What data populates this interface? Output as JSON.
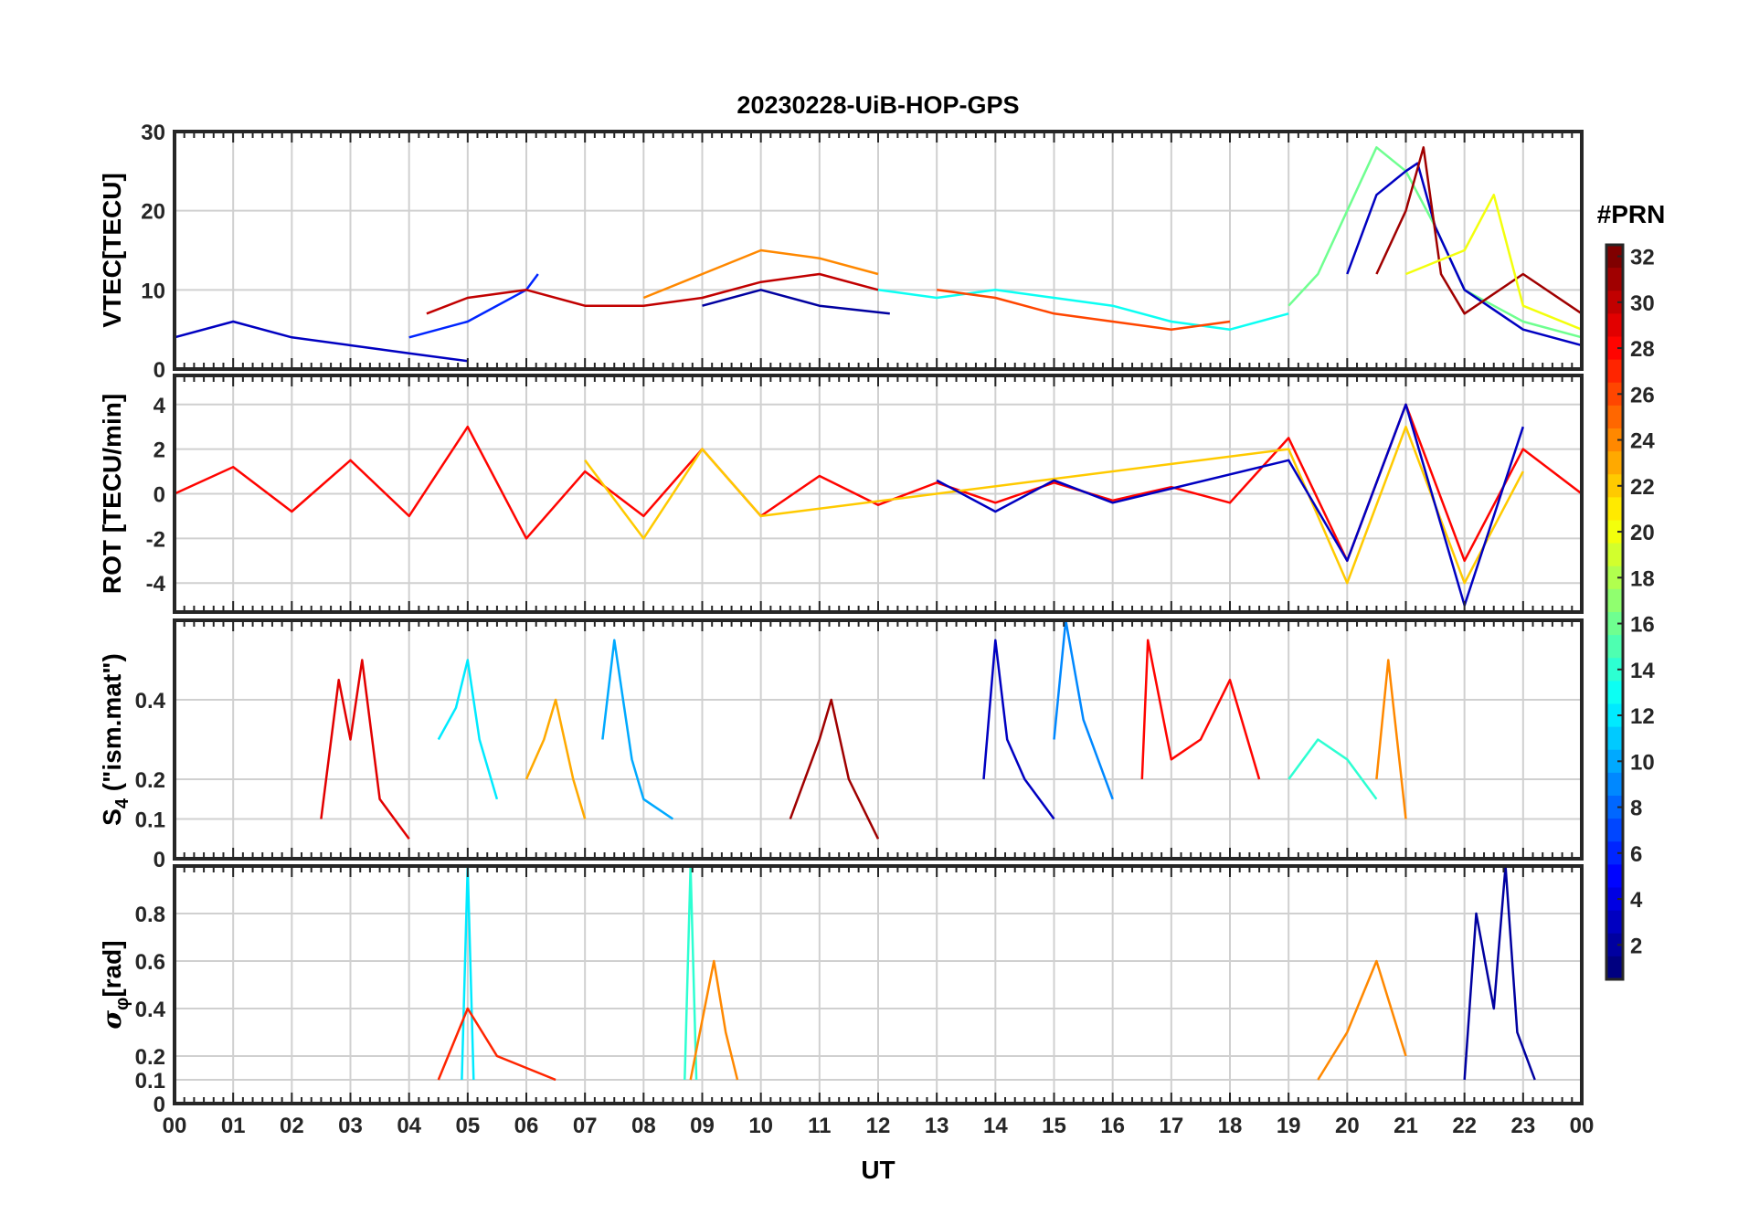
{
  "chart_data": {
    "type": "line",
    "title": "20230228-UiB-HOP-GPS",
    "xlabel": "UT",
    "x_range_hours": [
      0,
      24
    ],
    "x_tick_labels": [
      "00",
      "01",
      "02",
      "03",
      "04",
      "05",
      "06",
      "07",
      "08",
      "09",
      "10",
      "11",
      "12",
      "13",
      "14",
      "15",
      "16",
      "17",
      "18",
      "19",
      "20",
      "21",
      "22",
      "23",
      "00"
    ],
    "grid": true,
    "colorbar": {
      "label": "#PRN",
      "range": [
        1,
        32
      ],
      "tick_labels": [
        "2",
        "4",
        "6",
        "8",
        "10",
        "12",
        "14",
        "16",
        "18",
        "20",
        "22",
        "24",
        "26",
        "28",
        "30",
        "32"
      ],
      "colormap": "jet"
    },
    "panels": [
      {
        "id": "vtec",
        "ylabel": "VTEC[TECU]",
        "ylim": [
          0,
          30
        ],
        "y_tick_labels": [
          "0",
          "10",
          "20",
          "30"
        ],
        "series": [
          {
            "prn": 3,
            "hours": [
              0,
              1,
              2,
              3,
              4,
              5
            ],
            "values": [
              4,
              6,
              4,
              3,
              2,
              1
            ]
          },
          {
            "prn": 6,
            "hours": [
              4,
              5,
              6,
              6.2
            ],
            "values": [
              4,
              6,
              10,
              12
            ]
          },
          {
            "prn": 2,
            "hours": [
              9,
              10,
              11,
              12.2
            ],
            "values": [
              8,
              10,
              8,
              7
            ]
          },
          {
            "prn": 30,
            "hours": [
              4.3,
              5,
              6,
              7,
              8,
              9,
              10,
              11,
              12
            ],
            "values": [
              7,
              9,
              10,
              8,
              8,
              9,
              11,
              12,
              10
            ]
          },
          {
            "prn": 24,
            "hours": [
              8,
              9,
              10,
              11,
              12
            ],
            "values": [
              9,
              12,
              15,
              14,
              12
            ]
          },
          {
            "prn": 13,
            "hours": [
              12,
              13,
              14,
              15,
              16,
              17,
              18,
              19
            ],
            "values": [
              10,
              9,
              10,
              9,
              8,
              6,
              5,
              7
            ]
          },
          {
            "prn": 26,
            "hours": [
              13,
              14,
              15,
              16,
              17,
              18
            ],
            "values": [
              10,
              9,
              7,
              6,
              5,
              6
            ]
          },
          {
            "prn": 16,
            "hours": [
              19,
              19.5,
              20,
              20.5,
              21,
              21.5,
              22,
              23,
              24
            ],
            "values": [
              8,
              12,
              20,
              28,
              25,
              18,
              10,
              6,
              4
            ]
          },
          {
            "prn": 3,
            "hours": [
              20,
              20.5,
              21,
              21.2,
              21.5,
              22,
              23,
              24
            ],
            "values": [
              12,
              22,
              25,
              26,
              18,
              10,
              5,
              3
            ]
          },
          {
            "prn": 31,
            "hours": [
              20.5,
              21,
              21.3,
              21.6,
              22,
              23,
              24
            ],
            "values": [
              12,
              20,
              28,
              12,
              7,
              12,
              7
            ]
          },
          {
            "prn": 20,
            "hours": [
              21,
              22,
              22.5,
              23,
              24
            ],
            "values": [
              12,
              15,
              22,
              8,
              5
            ]
          }
        ]
      },
      {
        "id": "rot",
        "ylabel": "ROT [TECU/min]",
        "ylim": [
          -5.3,
          5.3
        ],
        "y_tick_labels": [
          "-4",
          "-2",
          "0",
          "2",
          "4"
        ],
        "series": [
          {
            "prn": 28,
            "hours": [
              0,
              1,
              2,
              3,
              4,
              5,
              6,
              7,
              8,
              9,
              10,
              11,
              12,
              13,
              14,
              15,
              16,
              17,
              18,
              19,
              20,
              21,
              22,
              23,
              24
            ],
            "values": [
              0,
              1.2,
              -0.8,
              1.5,
              -1,
              3,
              -2,
              1,
              -1,
              2,
              -1,
              0.8,
              -0.5,
              0.5,
              -0.4,
              0.5,
              -0.3,
              0.3,
              -0.4,
              2.5,
              -3,
              4,
              -3,
              2,
              0
            ]
          },
          {
            "prn": 22,
            "hours": [
              7,
              8,
              9,
              10,
              19,
              20,
              21,
              22,
              23
            ],
            "values": [
              1.5,
              -2,
              2,
              -1,
              2,
              -4,
              3,
              -4,
              1
            ]
          },
          {
            "prn": 3,
            "hours": [
              13,
              14,
              15,
              16,
              19,
              20,
              21,
              22,
              23
            ],
            "values": [
              0.6,
              -0.8,
              0.6,
              -0.4,
              1.5,
              -3,
              4,
              -5,
              3
            ]
          }
        ]
      },
      {
        "id": "s4",
        "ylabel": "S4 (\"ism.mat\")",
        "ylabel_main": "S",
        "ylabel_sub": "4",
        "ylabel_rest": " (\"ism.mat\")",
        "ylim": [
          0,
          0.6
        ],
        "y_tick_labels": [
          "0",
          "0.1",
          "0.2",
          "0.4"
        ],
        "y_tick_values": [
          0,
          0.1,
          0.2,
          0.4
        ],
        "series": [
          {
            "prn": 29,
            "hours": [
              2.5,
              2.8,
              3,
              3.2,
              3.5,
              4
            ],
            "values": [
              0.1,
              0.45,
              0.3,
              0.5,
              0.15,
              0.05
            ]
          },
          {
            "prn": 12,
            "hours": [
              4.5,
              4.8,
              5,
              5.2,
              5.5
            ],
            "values": [
              0.3,
              0.38,
              0.5,
              0.3,
              0.15
            ]
          },
          {
            "prn": 23,
            "hours": [
              6,
              6.3,
              6.5,
              6.8,
              7
            ],
            "values": [
              0.2,
              0.3,
              0.4,
              0.2,
              0.1
            ]
          },
          {
            "prn": 10,
            "hours": [
              7.3,
              7.5,
              7.8,
              8,
              8.5
            ],
            "values": [
              0.3,
              0.55,
              0.25,
              0.15,
              0.1
            ]
          },
          {
            "prn": 31,
            "hours": [
              10.5,
              11,
              11.2,
              11.5,
              12
            ],
            "values": [
              0.1,
              0.3,
              0.4,
              0.2,
              0.05
            ]
          },
          {
            "prn": 3,
            "hours": [
              13.8,
              14,
              14.2,
              14.5,
              15
            ],
            "values": [
              0.2,
              0.55,
              0.3,
              0.2,
              0.1
            ]
          },
          {
            "prn": 9,
            "hours": [
              15,
              15.2,
              15.5,
              16
            ],
            "values": [
              0.3,
              0.6,
              0.35,
              0.15
            ]
          },
          {
            "prn": 28,
            "hours": [
              16.5,
              16.6,
              17,
              17.5,
              18,
              18.5
            ],
            "values": [
              0.2,
              0.55,
              0.25,
              0.3,
              0.45,
              0.2
            ]
          },
          {
            "prn": 14,
            "hours": [
              19,
              19.5,
              20,
              20.5
            ],
            "values": [
              0.2,
              0.3,
              0.25,
              0.15
            ]
          },
          {
            "prn": 24,
            "hours": [
              20.5,
              20.7,
              21
            ],
            "values": [
              0.2,
              0.5,
              0.1
            ]
          }
        ]
      },
      {
        "id": "sigmaphi",
        "ylabel": "σφ[rad]",
        "ylabel_main": "σ",
        "ylabel_sub": "φ",
        "ylabel_rest": "[rad]",
        "ylim": [
          0,
          1
        ],
        "y_tick_labels": [
          "0",
          "0.1",
          "0.2",
          "0.4",
          "0.6",
          "0.8"
        ],
        "y_tick_values": [
          0,
          0.1,
          0.2,
          0.4,
          0.6,
          0.8
        ],
        "series": [
          {
            "prn": 12,
            "hours": [
              4.9,
              5,
              5.1
            ],
            "values": [
              0.1,
              1.0,
              0.1
            ]
          },
          {
            "prn": 14,
            "hours": [
              8.7,
              8.8,
              8.9
            ],
            "values": [
              0.1,
              1.0,
              0.1
            ]
          },
          {
            "prn": 24,
            "hours": [
              8.8,
              9,
              9.2,
              9.4,
              9.6
            ],
            "values": [
              0.1,
              0.35,
              0.6,
              0.3,
              0.1
            ]
          },
          {
            "prn": 27,
            "hours": [
              4.5,
              5,
              5.5,
              6,
              6.5
            ],
            "values": [
              0.1,
              0.4,
              0.2,
              0.15,
              0.1
            ]
          },
          {
            "prn": 24,
            "hours": [
              19.5,
              20,
              20.5,
              21
            ],
            "values": [
              0.1,
              0.3,
              0.6,
              0.2
            ]
          },
          {
            "prn": 2,
            "hours": [
              22,
              22.2,
              22.5,
              22.7,
              22.9,
              23.2
            ],
            "values": [
              0.1,
              0.8,
              0.4,
              1.0,
              0.3,
              0.1
            ]
          }
        ]
      }
    ]
  }
}
